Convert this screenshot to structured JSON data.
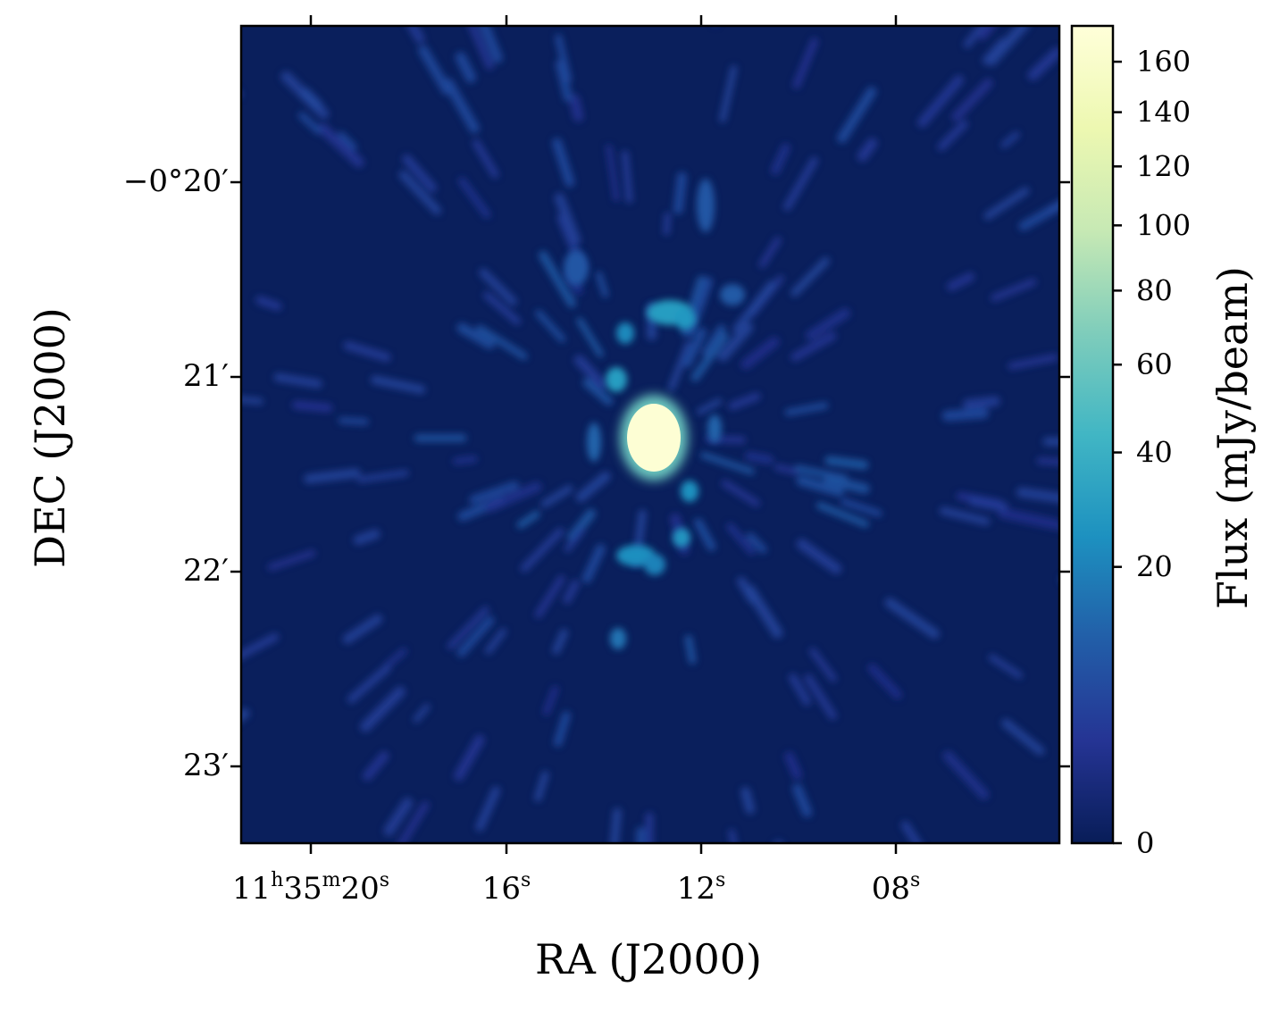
{
  "chart_data": {
    "type": "heatmap",
    "image": "radio interferometric flux map (yellow-green-blue colormap) with a bright central point source and radial sidelobe structure",
    "xlabel": "RA (J2000)",
    "ylabel": "DEC (J2000)",
    "x_ticks": [
      {
        "label_main": "11",
        "sup1": "h",
        "mid": "35",
        "sup2": "m",
        "tail": "20",
        "sup3": "s"
      },
      {
        "label_main": "16",
        "sup": "s"
      },
      {
        "label_main": "12",
        "sup": "s"
      },
      {
        "label_main": "08",
        "sup": "s"
      }
    ],
    "y_ticks": [
      "−0°20′",
      "21′",
      "22′",
      "23′"
    ],
    "colorbar": {
      "label": "Flux (mJy/beam)",
      "scale": "sqrt",
      "range": [
        0,
        175
      ],
      "ticks": [
        0,
        20,
        40,
        60,
        80,
        100,
        120,
        140,
        160
      ],
      "tick_labels": [
        "0",
        "20",
        "40",
        "60",
        "80",
        "100",
        "120",
        "140",
        "160"
      ],
      "colors": [
        "#081d58",
        "#253494",
        "#225ea8",
        "#1d91c0",
        "#41b6c4",
        "#7fcdbb",
        "#c7e9b4",
        "#edf8b1",
        "#ffffd9"
      ]
    },
    "source": {
      "ra_label": "11h35m13s",
      "dec_label": "−0°21′15″",
      "peak_flux": 170,
      "shape": "compact elliptical point source"
    },
    "sidelobes": [
      {
        "dec": "−0°20′40″",
        "flux": 30
      },
      {
        "dec": "−0°20′50″",
        "flux": 25
      },
      {
        "dec": "−0°21′00″",
        "flux": 30
      },
      {
        "dec": "−0°21′35″",
        "flux": 22
      },
      {
        "dec": "−0°21′50″",
        "flux": 28
      },
      {
        "dec": "−0°22′20″",
        "flux": 18
      }
    ]
  }
}
